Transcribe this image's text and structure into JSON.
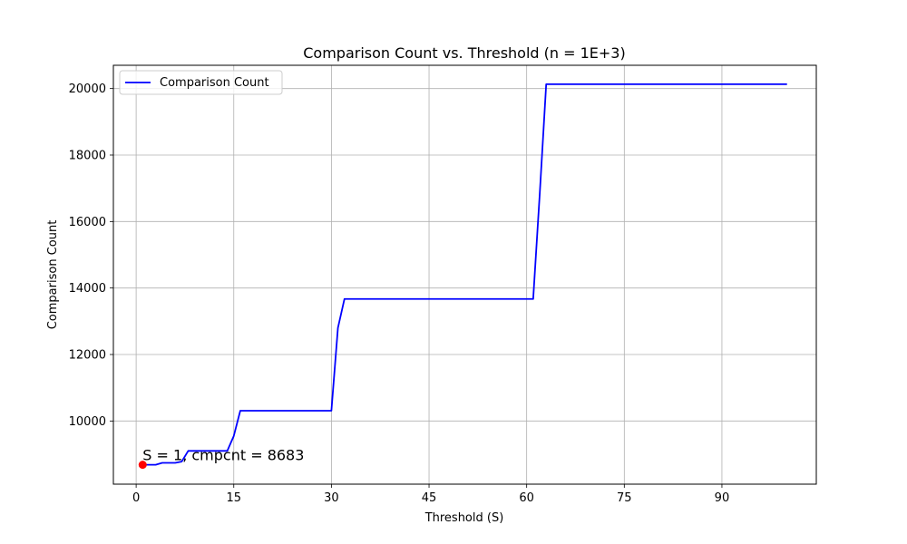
{
  "chart_data": {
    "type": "line",
    "title": "Comparison Count vs. Threshold (n = 1E+3)",
    "xlabel": "Threshold (S)",
    "ylabel": "Comparison Count",
    "xlim": [
      -3.5,
      104.5
    ],
    "ylim": [
      8100,
      20700
    ],
    "xticks": [
      0,
      15,
      30,
      45,
      60,
      75,
      90
    ],
    "yticks": [
      10000,
      12000,
      14000,
      16000,
      18000,
      20000
    ],
    "grid": true,
    "legend_position": "top-left",
    "series": [
      {
        "name": "Comparison Count",
        "color": "#0000ff",
        "x": [
          1,
          2,
          3,
          4,
          5,
          6,
          7,
          8,
          9,
          10,
          11,
          12,
          13,
          14,
          15,
          16,
          30,
          31,
          32,
          61,
          62,
          63,
          100
        ],
        "y": [
          8683,
          8683,
          8683,
          8740,
          8740,
          8740,
          8780,
          9100,
          9100,
          9100,
          9100,
          9100,
          9100,
          9100,
          9550,
          10310,
          10310,
          12800,
          13670,
          13670,
          16800,
          20130,
          20130
        ]
      }
    ],
    "highlight_point": {
      "x": 1,
      "y": 8683,
      "color": "#ff0000"
    },
    "annotation": "S = 1, cmpcnt = 8683"
  }
}
